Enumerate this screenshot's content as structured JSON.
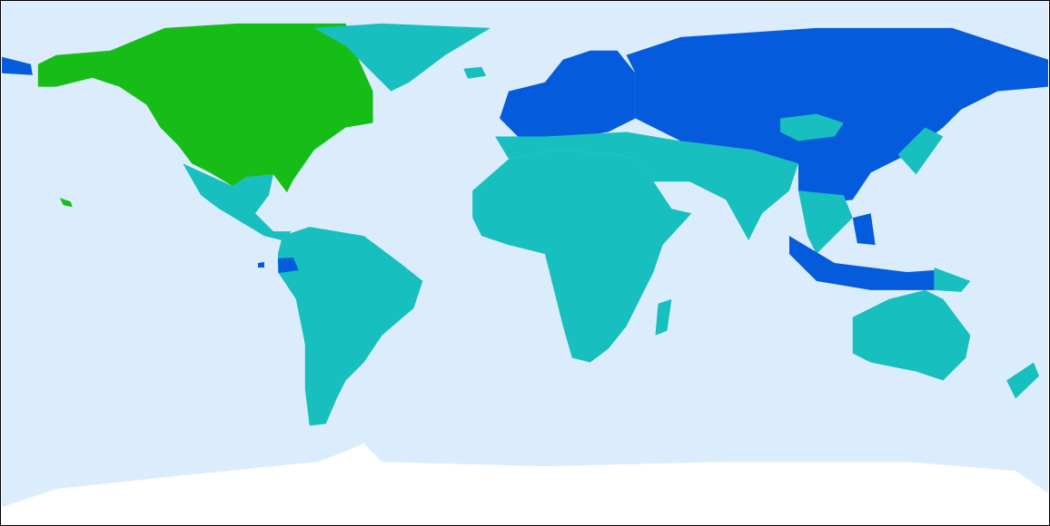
{
  "map": {
    "projection": "equirectangular",
    "colors": {
      "ocean": "#dbedfc",
      "group_teal": "#17bfbf",
      "group_green": "#17bd17",
      "group_blue": "#045cdc",
      "antarctica": "#ffffff"
    }
  }
}
